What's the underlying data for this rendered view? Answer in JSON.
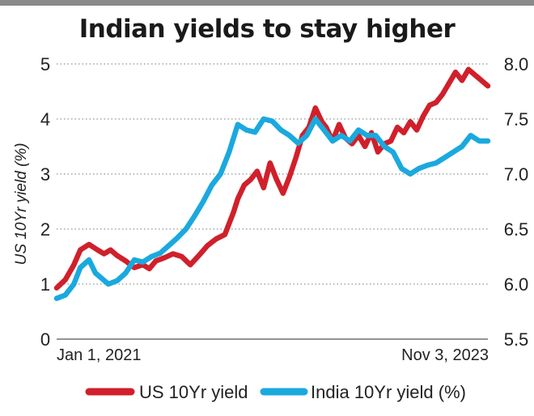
{
  "chart_data": {
    "type": "line",
    "title": "Indian yields to stay higher",
    "ylabel_left": "US 10Yr yield (%)",
    "ylabel_right": "",
    "x_tick_labels": [
      "Jan 1, 2021",
      "Nov 3, 2023"
    ],
    "y_left_ticks": [
      "0",
      "1",
      "2",
      "3",
      "4",
      "5"
    ],
    "y_right_ticks": [
      "5.5",
      "6.0",
      "6.5",
      "7.0",
      "7.5",
      "8.0"
    ],
    "ylim_left": [
      0,
      5
    ],
    "ylim_right": [
      5.5,
      8.0
    ],
    "grid": "horizontal dotted",
    "legend_position": "bottom",
    "colors": {
      "us": "#d0202b",
      "india": "#1aa9de"
    },
    "series": [
      {
        "name": "US 10Yr yield",
        "axis": "left",
        "t": [
          0.0,
          0.02,
          0.04,
          0.055,
          0.075,
          0.095,
          0.11,
          0.125,
          0.14,
          0.16,
          0.18,
          0.2,
          0.215,
          0.23,
          0.25,
          0.27,
          0.29,
          0.31,
          0.33,
          0.35,
          0.37,
          0.39,
          0.41,
          0.42,
          0.435,
          0.45,
          0.465,
          0.48,
          0.495,
          0.51,
          0.525,
          0.54,
          0.555,
          0.57,
          0.585,
          0.6,
          0.615,
          0.625,
          0.64,
          0.655,
          0.67,
          0.685,
          0.7,
          0.715,
          0.73,
          0.745,
          0.76,
          0.775,
          0.79,
          0.805,
          0.82,
          0.835,
          0.85,
          0.865,
          0.88,
          0.895,
          0.91,
          0.925,
          0.94,
          0.955,
          0.97,
          0.985,
          1.0
        ],
        "values": [
          0.93,
          1.08,
          1.35,
          1.62,
          1.72,
          1.62,
          1.55,
          1.62,
          1.52,
          1.42,
          1.3,
          1.35,
          1.28,
          1.42,
          1.48,
          1.55,
          1.5,
          1.35,
          1.52,
          1.7,
          1.82,
          1.9,
          2.3,
          2.55,
          2.8,
          2.9,
          3.05,
          2.75,
          3.2,
          2.9,
          2.65,
          2.95,
          3.3,
          3.7,
          3.85,
          4.2,
          3.95,
          3.85,
          3.6,
          3.9,
          3.65,
          3.55,
          3.7,
          3.5,
          3.75,
          3.4,
          3.55,
          3.6,
          3.85,
          3.75,
          3.95,
          3.8,
          4.05,
          4.25,
          4.3,
          4.45,
          4.65,
          4.85,
          4.7,
          4.9,
          4.8,
          4.7,
          4.6
        ]
      },
      {
        "name": "India 10Yr yield (%)",
        "axis": "right",
        "t": [
          0.0,
          0.02,
          0.04,
          0.055,
          0.075,
          0.09,
          0.105,
          0.12,
          0.14,
          0.16,
          0.18,
          0.2,
          0.22,
          0.24,
          0.26,
          0.28,
          0.3,
          0.32,
          0.34,
          0.36,
          0.38,
          0.4,
          0.42,
          0.44,
          0.46,
          0.48,
          0.5,
          0.52,
          0.54,
          0.56,
          0.58,
          0.6,
          0.62,
          0.64,
          0.66,
          0.68,
          0.7,
          0.72,
          0.74,
          0.76,
          0.78,
          0.8,
          0.82,
          0.84,
          0.86,
          0.88,
          0.9,
          0.92,
          0.94,
          0.96,
          0.98,
          1.0
        ],
        "values": [
          5.87,
          5.9,
          6.0,
          6.15,
          6.22,
          6.1,
          6.05,
          6.0,
          6.03,
          6.1,
          6.22,
          6.2,
          6.25,
          6.28,
          6.35,
          6.42,
          6.5,
          6.62,
          6.75,
          6.9,
          7.0,
          7.2,
          7.45,
          7.4,
          7.38,
          7.5,
          7.48,
          7.4,
          7.35,
          7.28,
          7.35,
          7.5,
          7.4,
          7.3,
          7.35,
          7.3,
          7.4,
          7.35,
          7.35,
          7.25,
          7.2,
          7.05,
          7.0,
          7.05,
          7.08,
          7.1,
          7.15,
          7.2,
          7.25,
          7.35,
          7.3,
          7.3
        ]
      }
    ]
  }
}
